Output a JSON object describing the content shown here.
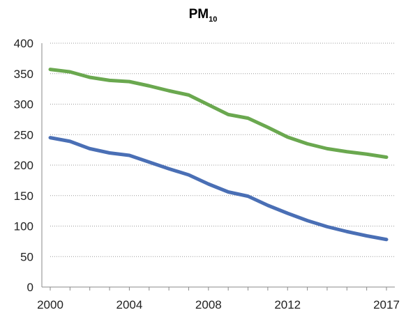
{
  "chart_data": {
    "type": "line",
    "title": "PM",
    "title_subscript": "10",
    "xlabel": "",
    "ylabel": "",
    "xlim": [
      2000,
      2017
    ],
    "ylim": [
      0,
      400
    ],
    "y_ticks": [
      0,
      50,
      100,
      150,
      200,
      250,
      300,
      350,
      400
    ],
    "x_tick_labels": [
      2000,
      2004,
      2008,
      2012,
      2017
    ],
    "grid": "horizontal dotted",
    "legend": "none",
    "x": [
      2000,
      2001,
      2002,
      2003,
      2004,
      2005,
      2006,
      2007,
      2008,
      2009,
      2010,
      2011,
      2012,
      2013,
      2014,
      2015,
      2016,
      2017
    ],
    "series": [
      {
        "color": "#6aa84f",
        "values": [
          357,
          353,
          344,
          339,
          337,
          330,
          322,
          315,
          299,
          283,
          277,
          262,
          246,
          235,
          227,
          222,
          218,
          213
        ]
      },
      {
        "color": "#4a6fb5",
        "values": [
          245,
          239,
          227,
          220,
          216,
          205,
          194,
          184,
          169,
          156,
          149,
          134,
          121,
          109,
          99,
          91,
          84,
          78
        ]
      }
    ]
  }
}
